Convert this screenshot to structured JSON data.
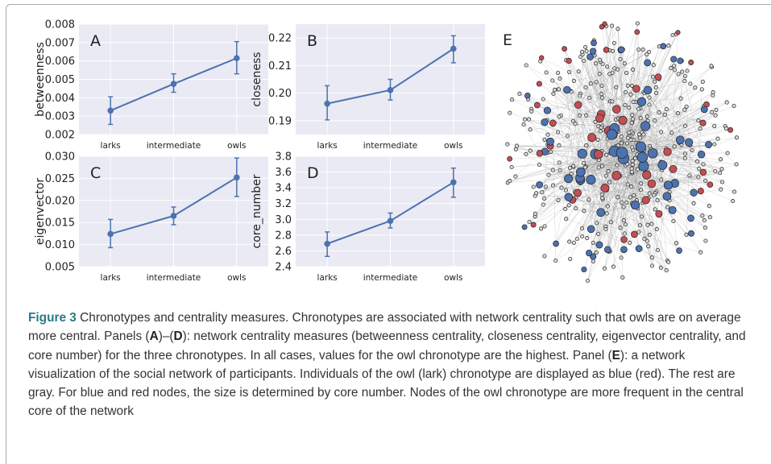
{
  "figure": {
    "caption_label": "Figure 3",
    "caption_parts": [
      {
        "t": "  Chronotypes and centrality measures. Chronotypes are associated with network centrality such that owls are on average more central. Panels ("
      },
      {
        "b": "A"
      },
      {
        "t": ")–("
      },
      {
        "b": "D"
      },
      {
        "t": "): network centrality measures (betweenness centrality, closeness centrality, eigenvector centrality, and core number) for the three chronotypes. In all cases, values for the owl chronotype are the highest. Panel ("
      },
      {
        "b": "E"
      },
      {
        "t": "): a network visualization of the social network of participants. Individuals of the owl (lark) chronotype are displayed as blue (red). The rest are gray. For blue and red nodes, the size is determined by core number. Nodes of the owl chronotype are more frequent in the central core of the network"
      }
    ]
  },
  "colors": {
    "panel_bg": "#e9eaf3",
    "grid": "#ffffff",
    "line": "#4c72b0",
    "owl": "#4c72b0",
    "lark": "#c44e52",
    "other": "#d9d9d9"
  },
  "network": {
    "panel_letter": "E"
  },
  "chart_data": [
    {
      "type": "line",
      "panel_letter": "A",
      "categories": [
        "larks",
        "intermediate",
        "owls"
      ],
      "values": [
        0.0033,
        0.00475,
        0.00615
      ],
      "errors": [
        [
          0.00255,
          0.00405
        ],
        [
          0.0043,
          0.0053
        ],
        [
          0.0053,
          0.00705
        ]
      ],
      "ylabel": "betweenness",
      "ylim": [
        0.002,
        0.008
      ],
      "yticks": [
        "0.002",
        "0.003",
        "0.004",
        "0.005",
        "0.006",
        "0.007",
        "0.008"
      ],
      "grid": true
    },
    {
      "type": "line",
      "panel_letter": "B",
      "categories": [
        "larks",
        "intermediate",
        "owls"
      ],
      "values": [
        0.1962,
        0.2011,
        0.2161
      ],
      "errors": [
        [
          0.1903,
          0.2027
        ],
        [
          0.1975,
          0.205
        ],
        [
          0.211,
          0.2208
        ]
      ],
      "ylabel": "closeness",
      "ylim": [
        0.185,
        0.225
      ],
      "yticks": [
        "0.19",
        "0.20",
        "0.21",
        "0.22"
      ],
      "grid": true
    },
    {
      "type": "line",
      "panel_letter": "C",
      "categories": [
        "larks",
        "intermediate",
        "owls"
      ],
      "values": [
        0.0124,
        0.0165,
        0.0252
      ],
      "errors": [
        [
          0.0093,
          0.0157
        ],
        [
          0.0145,
          0.0185
        ],
        [
          0.0209,
          0.0296
        ]
      ],
      "ylabel": "eigenvector",
      "ylim": [
        0.005,
        0.03
      ],
      "yticks": [
        "0.005",
        "0.010",
        "0.015",
        "0.020",
        "0.025",
        "0.030"
      ],
      "grid": true
    },
    {
      "type": "line",
      "panel_letter": "D",
      "categories": [
        "larks",
        "intermediate",
        "owls"
      ],
      "values": [
        2.69,
        2.98,
        3.47
      ],
      "errors": [
        [
          2.53,
          2.84
        ],
        [
          2.89,
          3.08
        ],
        [
          3.28,
          3.65
        ]
      ],
      "ylabel": "core_number",
      "ylim": [
        2.4,
        3.8
      ],
      "yticks": [
        "2.4",
        "2.6",
        "2.8",
        "3.0",
        "3.2",
        "3.4",
        "3.6",
        "3.8"
      ],
      "grid": true
    }
  ]
}
